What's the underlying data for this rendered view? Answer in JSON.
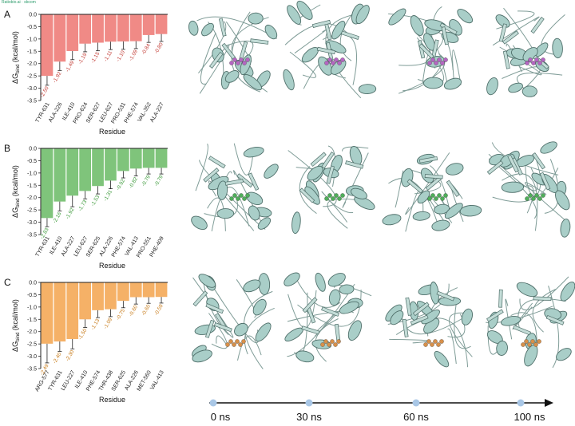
{
  "header": {
    "watermark": "Ratiobio.ai · sbcom"
  },
  "colors": {
    "A": "#f08a86",
    "B": "#7fc47b",
    "C": "#f5b167",
    "labelA": "#c23b34",
    "labelB": "#3c9a3a",
    "labelC": "#c77a17",
    "protein": "#a9cec8",
    "timeline_dot": "#a9c7e6"
  },
  "timeline": {
    "labels": [
      "0 ns",
      "30 ns",
      "60 ns",
      "100 ns"
    ]
  },
  "chart_data": [
    {
      "panel": "A",
      "type": "bar",
      "ylabel_main": "ΔG",
      "ylabel_sub": "bind",
      "ylabel_unit": " (kcal/mol)",
      "xlabel": "Residue",
      "categories": [
        "TYR-631",
        "ALA-226",
        "ILE-410",
        "PRO-624",
        "SER-627",
        "LEU-627",
        "PRO-531",
        "PHE-574",
        "VAL-352",
        "ALA-227"
      ],
      "values": [
        -2.5,
        -1.92,
        -1.49,
        -1.19,
        -1.15,
        -1.11,
        -1.1,
        -1.09,
        -0.84,
        -0.8
      ],
      "errors": [
        0.38,
        0.36,
        0.35,
        0.33,
        0.33,
        0.32,
        0.32,
        0.3,
        0.3,
        0.3
      ],
      "value_labels": [
        "-2.50",
        "-1.92",
        "-1.49",
        "-1.19",
        "-1.15",
        "-1.11",
        "-1.10",
        "-1.09",
        "-0.84",
        "-0.80"
      ],
      "ylim": [
        -3.5,
        0
      ],
      "yticks": [
        "0.0",
        "-0.5",
        "-1.0",
        "-1.5",
        "-2.0",
        "-2.5",
        "-3.0",
        "-3.5"
      ]
    },
    {
      "panel": "B",
      "type": "bar",
      "ylabel_main": "ΔG",
      "ylabel_sub": "bind",
      "ylabel_unit": " (kcal/mol)",
      "xlabel": "Residue",
      "categories": [
        "TYR-631",
        "ILE-410",
        "ALA-227",
        "LEU-627",
        "SER-625",
        "ALA-226",
        "PHE-574",
        "VAL-413",
        "PRO-551",
        "PHE-409"
      ],
      "values": [
        -2.83,
        -2.16,
        -1.92,
        -1.73,
        -1.53,
        -1.31,
        -0.92,
        -0.82,
        -0.79,
        -0.79
      ],
      "errors": [
        0.35,
        0.38,
        0.45,
        0.32,
        0.32,
        0.33,
        0.28,
        0.3,
        0.25,
        0.25
      ],
      "value_labels": [
        "-2.83",
        "-2.16",
        "-1.92",
        "-1.73",
        "-1.53",
        "-1.31",
        "-0.92",
        "-0.82",
        "-0.79",
        "-0.79"
      ],
      "ylim": [
        -3.5,
        0
      ],
      "yticks": [
        "0.0",
        "-0.5",
        "-1.0",
        "-1.5",
        "-2.0",
        "-2.5",
        "-3.0",
        "-3.5"
      ]
    },
    {
      "panel": "C",
      "type": "bar",
      "ylabel_main": "ΔG",
      "ylabel_sub": "bind",
      "ylabel_unit": " (kcal/mol)",
      "xlabel": "Residue",
      "categories": [
        "ARG-577",
        "TYR-631",
        "LEU-227",
        "ILE-410",
        "PHE-574",
        "THR-438",
        "SER-625",
        "ALA-226",
        "MET-560",
        "VAL-413"
      ],
      "values": [
        -2.49,
        -2.4,
        -2.3,
        -1.5,
        -1.13,
        -1.09,
        -0.75,
        -0.6,
        -0.6,
        -0.59
      ],
      "errors": [
        0.78,
        0.4,
        0.4,
        0.33,
        0.3,
        0.3,
        0.28,
        0.28,
        0.25,
        0.25
      ],
      "value_labels": [
        "-2.49",
        "-2.40",
        "-2.30",
        "-1.50",
        "-1.13",
        "-1.09",
        "-0.75",
        "-0.60",
        "-0.60",
        "-0.59"
      ],
      "ylim": [
        -3.5,
        0
      ],
      "yticks": [
        "0.0",
        "-0.5",
        "-1.0",
        "-1.5",
        "-2.0",
        "-2.5",
        "-3.0",
        "-3.5"
      ]
    }
  ]
}
